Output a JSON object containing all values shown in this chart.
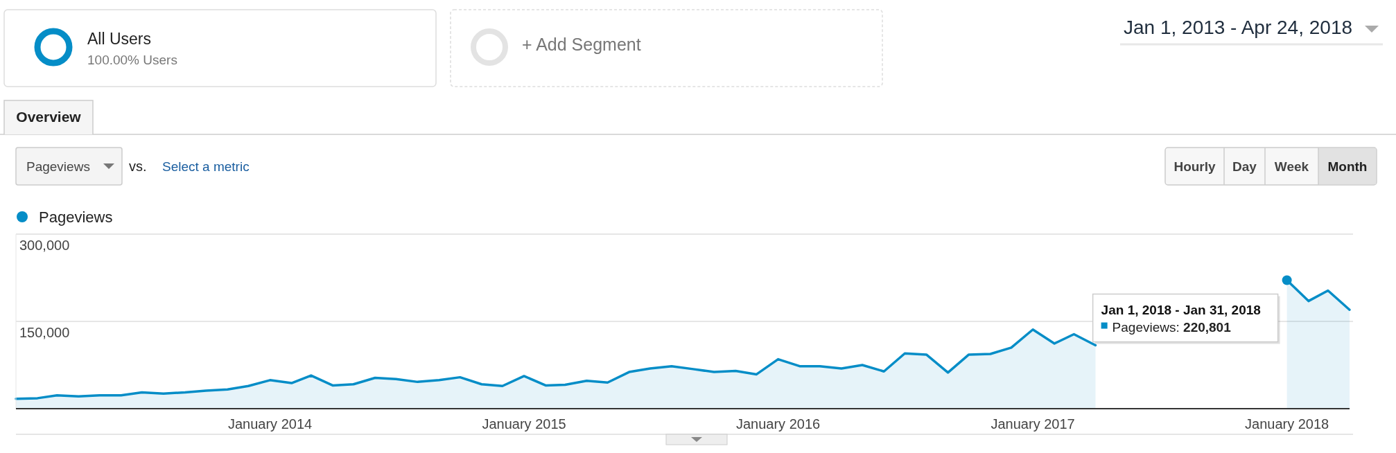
{
  "chart_data": {
    "type": "area",
    "x": [
      "2013-01",
      "2013-02",
      "2013-03",
      "2013-04",
      "2013-05",
      "2013-06",
      "2013-07",
      "2013-08",
      "2013-09",
      "2013-10",
      "2013-11",
      "2013-12",
      "2014-01",
      "2014-02",
      "2014-03",
      "2014-04",
      "2014-05",
      "2014-06",
      "2014-07",
      "2014-08",
      "2014-09",
      "2014-10",
      "2014-11",
      "2014-12",
      "2015-01",
      "2015-02",
      "2015-03",
      "2015-04",
      "2015-05",
      "2015-06",
      "2015-07",
      "2015-08",
      "2015-09",
      "2015-10",
      "2015-11",
      "2015-12",
      "2016-01",
      "2016-02",
      "2016-03",
      "2016-04",
      "2016-05",
      "2016-06",
      "2016-07",
      "2016-08",
      "2016-09",
      "2016-10",
      "2016-11",
      "2016-12",
      "2017-01",
      "2017-02",
      "2017-03",
      "2017-04",
      "2017-05",
      "2017-06",
      "2017-07",
      "2017-08",
      "2017-09",
      "2017-10",
      "2017-11",
      "2017-12",
      "2018-01",
      "2018-02",
      "2018-03",
      "2018-04"
    ],
    "series": [
      {
        "name": "Pageviews",
        "color": "#058dc7",
        "values": [
          17000,
          18000,
          23000,
          21000,
          23000,
          23000,
          28000,
          26000,
          28000,
          31000,
          33000,
          39000,
          49000,
          44000,
          57000,
          40000,
          42000,
          53000,
          51000,
          46000,
          49000,
          54000,
          42000,
          39000,
          56000,
          40000,
          41000,
          48000,
          45000,
          63000,
          69000,
          73000,
          68000,
          63000,
          65000,
          59000,
          85000,
          73000,
          73000,
          69000,
          75000,
          64000,
          95000,
          93000,
          62000,
          93000,
          94000,
          105000,
          136000,
          112000,
          128000,
          109000,
          null,
          null,
          null,
          null,
          null,
          null,
          null,
          null,
          220801,
          185000,
          203000,
          170000
        ]
      }
    ],
    "xlim": [
      "2013-01",
      "2018-04"
    ],
    "xticks": [
      {
        "value": "2014-01",
        "label": "January 2014"
      },
      {
        "value": "2015-01",
        "label": "January 2015"
      },
      {
        "value": "2016-01",
        "label": "January 2016"
      },
      {
        "value": "2017-01",
        "label": "January 2017"
      },
      {
        "value": "2018-01",
        "label": "January 2018"
      }
    ],
    "ylim": [
      0,
      300000
    ],
    "yticks": [
      {
        "value": 0,
        "label": null
      },
      {
        "value": 150000,
        "label": "150,000"
      },
      {
        "value": 300000,
        "label": "300,000"
      }
    ],
    "grid": "y",
    "legend": "top left",
    "marker": "none",
    "annotations": [
      "All Users",
      "100.00% Users",
      "+ Add Segment",
      "Jan 1, 2013 - Apr 24, 2018",
      "Overview",
      "Pageviews",
      "vs.",
      "Select a metric",
      "Hourly",
      "Day",
      "Week",
      "Month",
      {
        "text": "Jan 1, 2018 - Jan 31, 2018\nPageviews: 220,801",
        "x": "2018-01",
        "y": 220801
      }
    ]
  }
}
